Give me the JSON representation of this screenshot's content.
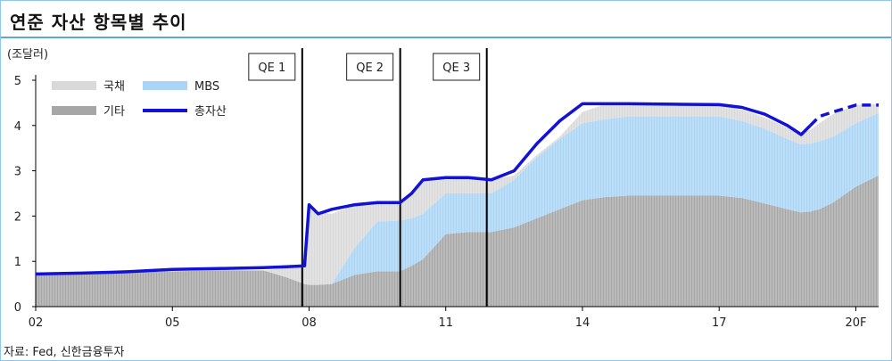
{
  "header": {
    "title": "연준 자산 항목별 추이"
  },
  "footer": {
    "source": "자료: Fed, 신한금융투자"
  },
  "chart_data": {
    "type": "area",
    "title": "연준 자산 항목별 추이",
    "ylabel": "(조달러)",
    "ylim": [
      0,
      5
    ],
    "yticks": [
      "0",
      "1",
      "2",
      "3",
      "4",
      "5"
    ],
    "xlim": [
      2002,
      2020.5
    ],
    "xticks": [
      {
        "x": 2002,
        "label": "02"
      },
      {
        "x": 2005,
        "label": "05"
      },
      {
        "x": 2008,
        "label": "08"
      },
      {
        "x": 2011,
        "label": "11"
      },
      {
        "x": 2014,
        "label": "14"
      },
      {
        "x": 2017,
        "label": "17"
      },
      {
        "x": 2020,
        "label": "20F"
      }
    ],
    "annotations": [
      {
        "label": "QE 1",
        "x": 2007.85
      },
      {
        "label": "QE 2",
        "x": 2010.0
      },
      {
        "label": "QE 3",
        "x": 2011.9
      }
    ],
    "legend": {
      "placement": "top-left",
      "items": [
        {
          "name": "국채",
          "color": "#d9d9d9",
          "kind": "area"
        },
        {
          "name": "MBS",
          "color": "#a9d4f5",
          "kind": "area"
        },
        {
          "name": "기타",
          "color": "#a6a6a6",
          "kind": "area"
        },
        {
          "name": "총자산",
          "color": "#1212d6",
          "kind": "line"
        }
      ]
    },
    "forecast_from": 2019.0,
    "x": [
      2002,
      2003,
      2004,
      2005,
      2006,
      2007,
      2007.5,
      2007.9,
      2008.0,
      2008.2,
      2008.5,
      2009,
      2009.5,
      2010,
      2010.25,
      2010.5,
      2011,
      2011.5,
      2012,
      2012.5,
      2013,
      2013.5,
      2014,
      2014.5,
      2015,
      2016,
      2017,
      2017.5,
      2018,
      2018.5,
      2018.8,
      2019,
      2019.2,
      2019.5,
      2020,
      2020.5
    ],
    "series": [
      {
        "name": "기타",
        "color": "#a6a6a6",
        "values": [
          0.7,
          0.73,
          0.75,
          0.78,
          0.8,
          0.8,
          0.65,
          0.5,
          0.48,
          0.48,
          0.5,
          0.7,
          0.78,
          0.78,
          0.9,
          1.05,
          1.6,
          1.65,
          1.65,
          1.75,
          1.95,
          2.15,
          2.35,
          2.42,
          2.45,
          2.45,
          2.45,
          2.4,
          2.28,
          2.15,
          2.08,
          2.1,
          2.15,
          2.3,
          2.65,
          2.9
        ]
      },
      {
        "name": "MBS",
        "color": "#a9d4f5",
        "values": [
          0,
          0,
          0,
          0,
          0,
          0,
          0,
          0,
          0,
          0,
          0,
          0.6,
          1.1,
          1.12,
          1.05,
          1.0,
          0.9,
          0.85,
          0.85,
          1.05,
          1.35,
          1.55,
          1.7,
          1.72,
          1.75,
          1.75,
          1.75,
          1.7,
          1.65,
          1.55,
          1.5,
          1.5,
          1.5,
          1.45,
          1.4,
          1.38
        ]
      },
      {
        "name": "국채",
        "color": "#d9d9d9",
        "values": [
          0,
          0,
          0,
          0,
          0,
          0,
          0.2,
          0.4,
          1.75,
          1.6,
          1.55,
          0.95,
          0.4,
          0.38,
          0.55,
          0.75,
          0.3,
          0.33,
          0.3,
          0.1,
          0.05,
          0.05,
          0.25,
          0.33,
          0.3,
          0.28,
          0.25,
          0.25,
          0.25,
          0.25,
          0.25,
          0.3,
          0.4,
          0.5,
          0.4,
          0.2
        ]
      },
      {
        "name": "총자산",
        "color": "#1212d6",
        "values": [
          0.72,
          0.74,
          0.77,
          0.82,
          0.84,
          0.86,
          0.88,
          0.9,
          2.25,
          2.05,
          2.15,
          2.25,
          2.3,
          2.3,
          2.5,
          2.8,
          2.85,
          2.85,
          2.8,
          3.0,
          3.6,
          4.1,
          4.48,
          4.48,
          4.48,
          4.47,
          4.46,
          4.4,
          4.25,
          4.0,
          3.8,
          4.0,
          4.2,
          4.3,
          4.45,
          4.45
        ]
      }
    ]
  }
}
